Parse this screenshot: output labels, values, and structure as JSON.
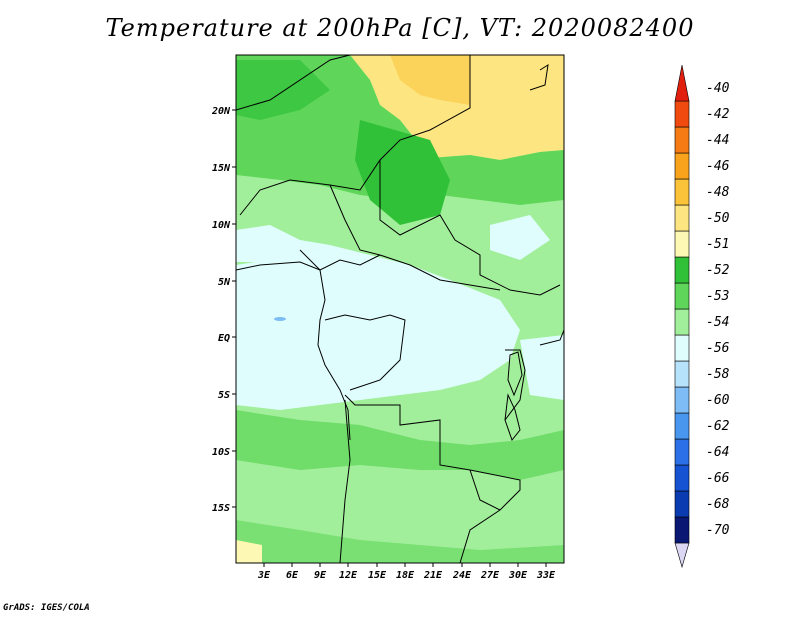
{
  "title": "Temperature at 200hPa [C], VT: 2020082400",
  "credit": "GrADS: IGES/COLA",
  "map": {
    "lat_labels": [
      "20N",
      "15N",
      "10N",
      "5N",
      "EQ",
      "5S",
      "10S",
      "15S"
    ],
    "lon_labels": [
      "3E",
      "6E",
      "9E",
      "12E",
      "15E",
      "18E",
      "21E",
      "24E",
      "27E",
      "30E",
      "33E"
    ]
  },
  "colorbar": {
    "labels": [
      "-40",
      "-42",
      "-44",
      "-46",
      "-48",
      "-50",
      "-51",
      "-52",
      "-53",
      "-54",
      "-56",
      "-58",
      "-60",
      "-62",
      "-64",
      "-66",
      "-68",
      "-70"
    ],
    "colors": [
      "#e01f0f",
      "#f04a10",
      "#f77b14",
      "#f9a21b",
      "#fbc33a",
      "#fde681",
      "#fdf8b4",
      "#31c138",
      "#5fd65a",
      "#a2ef9b",
      "#e0fdfe",
      "#b6e2fb",
      "#7dbcf5",
      "#4996ee",
      "#2b70e6",
      "#1653d3",
      "#0b3bb0",
      "#0a1773",
      "#dcd7f3"
    ]
  }
}
